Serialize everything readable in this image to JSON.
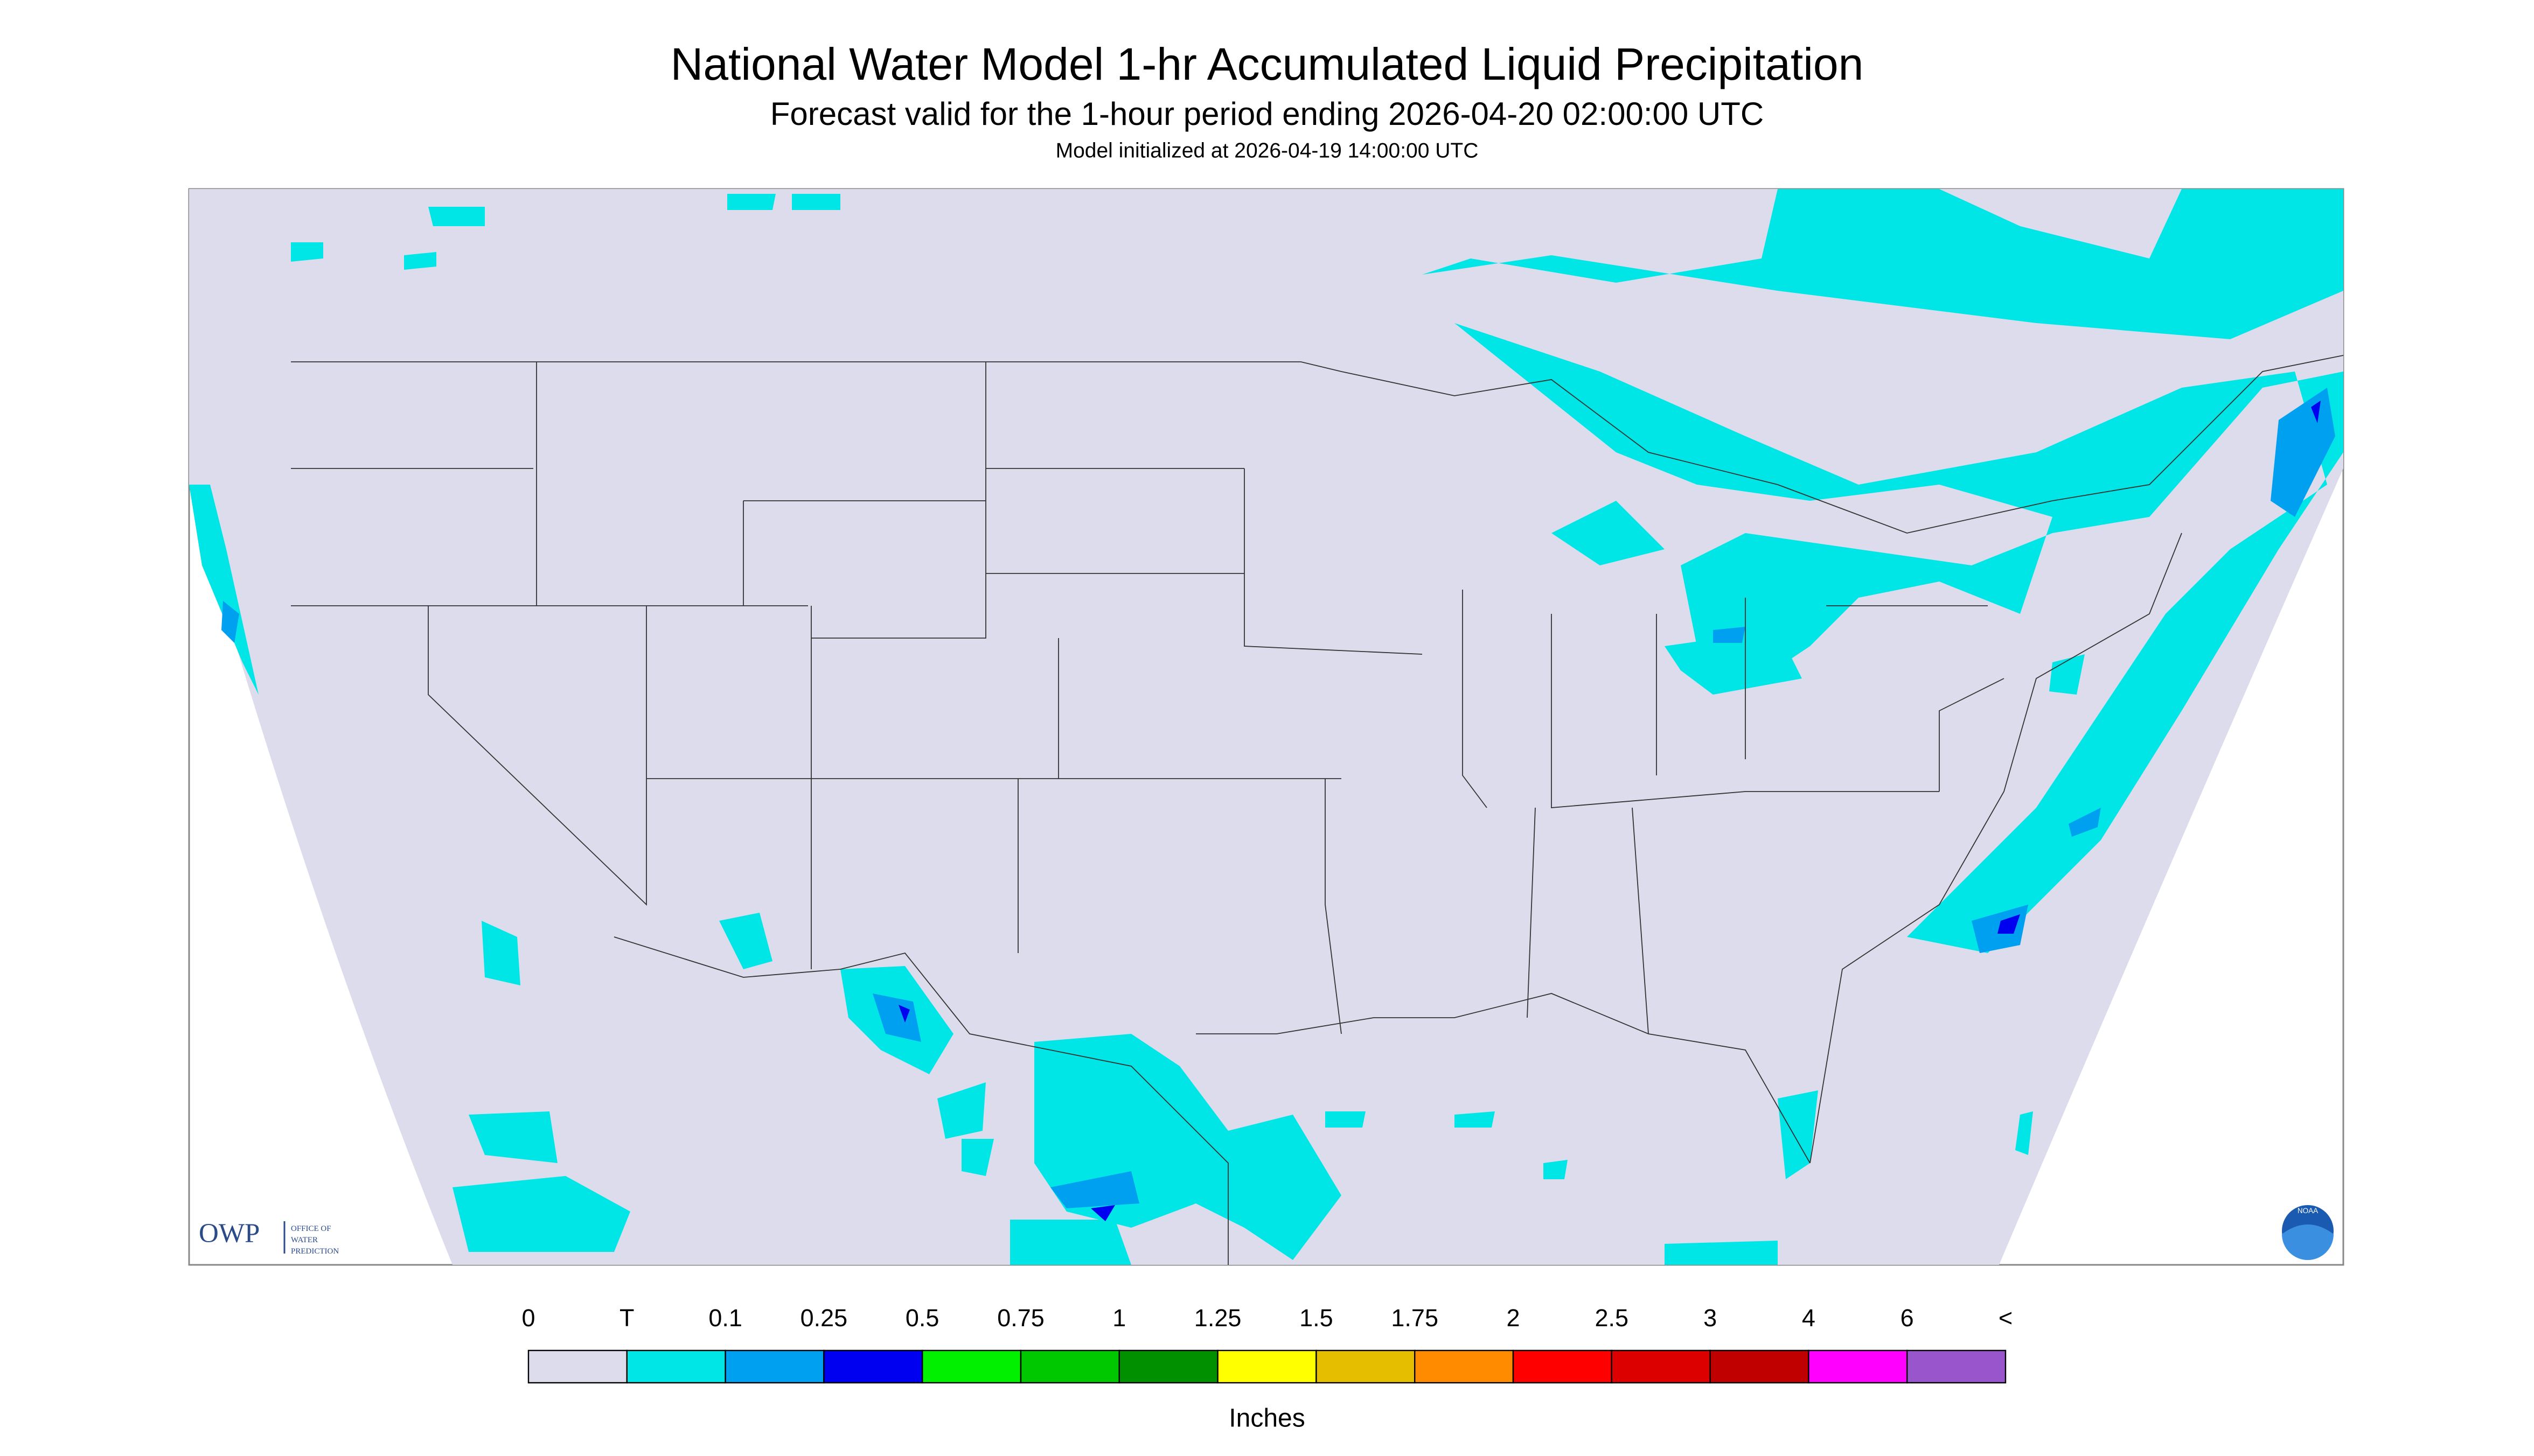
{
  "header": {
    "title": "National Water Model 1-hr Accumulated Liquid Precipitation",
    "subtitle": "Forecast valid for the 1-hour period ending 2026-04-20 02:00:00 UTC",
    "note": "Model initialized at 2026-04-19 14:00:00 UTC"
  },
  "logo": {
    "acronym": "OWP",
    "lines": [
      "OFFICE OF",
      "WATER",
      "PREDICTION"
    ],
    "agency": "NOAA"
  },
  "legend": {
    "labels": [
      "0",
      "T",
      "0.1",
      "0.25",
      "0.5",
      "0.75",
      "1",
      "1.25",
      "1.5",
      "1.75",
      "2",
      "2.5",
      "3",
      "4",
      "6",
      "<"
    ],
    "colors": [
      "#dcdcec",
      "#00e6e6",
      "#00a0f0",
      "#0000f0",
      "#00f000",
      "#00c800",
      "#009000",
      "#ffff00",
      "#e6be00",
      "#ff8c00",
      "#ff0000",
      "#dc0000",
      "#c00000",
      "#ff00ff",
      "#9955cc"
    ],
    "unit": "Inches"
  }
}
